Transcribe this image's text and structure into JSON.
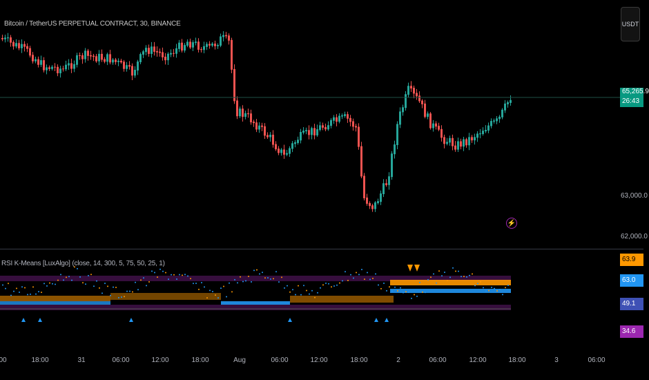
{
  "symbol_title": "Bitcoin / TetherUS PERPETUAL CONTRACT, 30, BINANCE",
  "currency_button": "USDT",
  "last_price": "65,265.9",
  "countdown": "26:43",
  "price_scale": [
    "63,000.0",
    "62,000.0"
  ],
  "indicator_title": "RSI K-Means [LuxAlgo] (close, 14, 300, 5, 75, 50, 25, 1)",
  "indicator_scale": [
    {
      "label": "63.9",
      "bg": "#ff9800",
      "color": "#000000"
    },
    {
      "label": "63.0",
      "bg": "#2196f3",
      "color": "#ffffff"
    },
    {
      "label": "49.1",
      "bg": "#3f51b5",
      "color": "#ffffff"
    },
    {
      "label": "34.6",
      "bg": "#9c27b0",
      "color": "#ffffff"
    }
  ],
  "time_axis": [
    "00",
    "18:00",
    "31",
    "06:00",
    "12:00",
    "18:00",
    "Aug",
    "06:00",
    "12:00",
    "18:00",
    "2",
    "06:00",
    "12:00",
    "18:00",
    "3",
    "06:00"
  ],
  "colors": {
    "up": "#26a69a",
    "down": "#ef5350",
    "last_price_bg": "#089981",
    "line": "#1e5046"
  },
  "icons": {
    "alert": "lightning-bolt-icon"
  }
}
